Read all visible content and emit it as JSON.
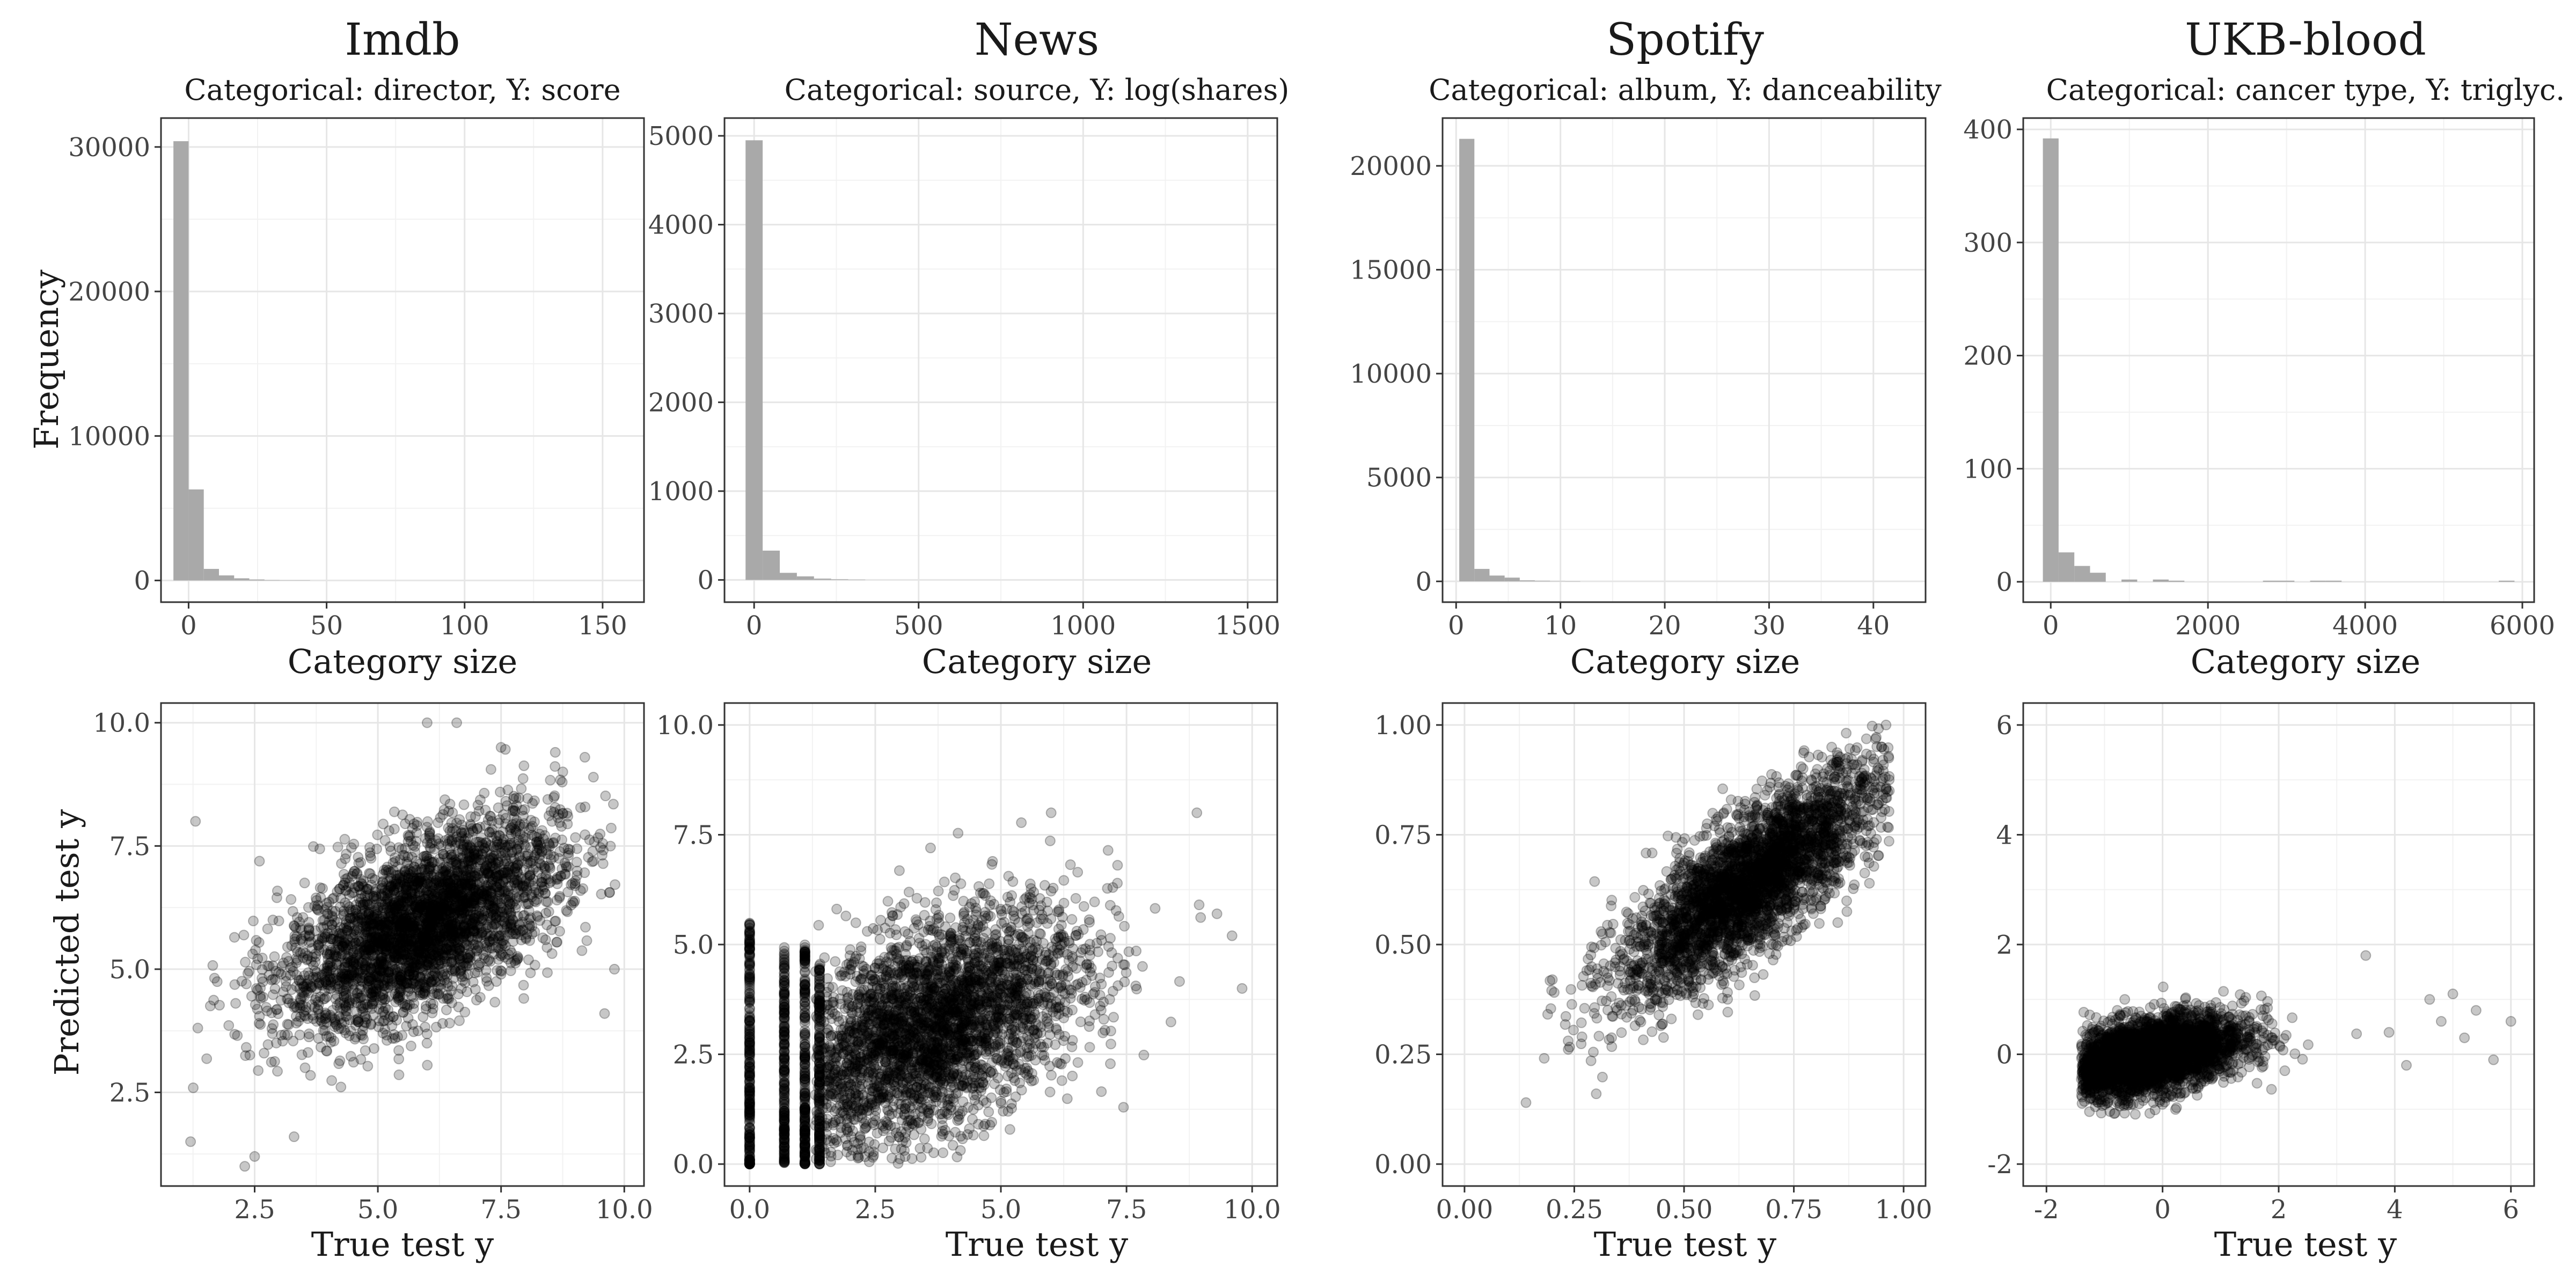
{
  "colors": {
    "bar": "#a9a9a9",
    "point": "#000000",
    "grid": "#e6e6e6",
    "border": "#333333"
  },
  "chart_data": [
    {
      "type": "bar",
      "title": "Imdb",
      "subtitle": "Categorical: director,  Y: score",
      "xlabel": "Category size",
      "ylabel": "Frequency",
      "xlim": [
        -10,
        165
      ],
      "ylim": [
        -1500,
        32000
      ],
      "xticks": [
        0,
        50,
        100,
        150
      ],
      "xtick_labels": [
        "0",
        "50",
        "100",
        "150"
      ],
      "yticks": [
        0,
        10000,
        20000,
        30000
      ],
      "ytick_labels": [
        "0",
        "10000",
        "20000",
        "30000"
      ],
      "bin_width": 5.5,
      "bins": [
        {
          "x0": -5.5,
          "count": 30400
        },
        {
          "x0": 0,
          "count": 6300
        },
        {
          "x0": 5.5,
          "count": 800
        },
        {
          "x0": 11,
          "count": 350
        },
        {
          "x0": 16.5,
          "count": 150
        },
        {
          "x0": 22,
          "count": 70
        },
        {
          "x0": 27.5,
          "count": 30
        },
        {
          "x0": 33,
          "count": 15
        },
        {
          "x0": 38.5,
          "count": 8
        }
      ]
    },
    {
      "type": "bar",
      "title": "News",
      "subtitle": "Categorical: source,  Y: log(shares)",
      "xlabel": "Category size",
      "ylabel": "",
      "xlim": [
        -90,
        1590
      ],
      "ylim": [
        -250,
        5200
      ],
      "xticks": [
        0,
        500,
        1000,
        1500
      ],
      "xtick_labels": [
        "0",
        "500",
        "1000",
        "1500"
      ],
      "yticks": [
        0,
        1000,
        2000,
        3000,
        4000,
        5000
      ],
      "ytick_labels": [
        "0",
        "1000",
        "2000",
        "3000",
        "4000",
        "5000"
      ],
      "bin_width": 52,
      "bins": [
        {
          "x0": -26,
          "count": 4950
        },
        {
          "x0": 26,
          "count": 330
        },
        {
          "x0": 78,
          "count": 80
        },
        {
          "x0": 130,
          "count": 40
        },
        {
          "x0": 182,
          "count": 15
        },
        {
          "x0": 234,
          "count": 8
        },
        {
          "x0": 286,
          "count": 4
        }
      ]
    },
    {
      "type": "bar",
      "title": "Spotify",
      "subtitle": "Categorical: album,  Y: danceability",
      "xlabel": "Category size",
      "ylabel": "",
      "xlim": [
        -1.3,
        45
      ],
      "ylim": [
        -1000,
        22300
      ],
      "xticks": [
        0,
        10,
        20,
        30,
        40
      ],
      "xtick_labels": [
        "0",
        "10",
        "20",
        "30",
        "40"
      ],
      "yticks": [
        0,
        5000,
        10000,
        15000,
        20000
      ],
      "ytick_labels": [
        "0",
        "5000",
        "10000",
        "15000",
        "20000"
      ],
      "bin_width": 1.45,
      "bins": [
        {
          "x0": 0.3,
          "count": 21300
        },
        {
          "x0": 1.75,
          "count": 600
        },
        {
          "x0": 3.2,
          "count": 280
        },
        {
          "x0": 4.65,
          "count": 180
        },
        {
          "x0": 6.1,
          "count": 50
        },
        {
          "x0": 7.55,
          "count": 30
        },
        {
          "x0": 9,
          "count": 15
        },
        {
          "x0": 10.45,
          "count": 8
        }
      ]
    },
    {
      "type": "bar",
      "title": "UKB-blood",
      "subtitle": "Categorical: cancer type,  Y: triglyc.",
      "xlabel": "Category size",
      "ylabel": "",
      "xlim": [
        -350,
        6150
      ],
      "ylim": [
        -18,
        410
      ],
      "xticks": [
        0,
        2000,
        4000,
        6000
      ],
      "xtick_labels": [
        "0",
        "2000",
        "4000",
        "6000"
      ],
      "yticks": [
        0,
        100,
        200,
        300,
        400
      ],
      "ytick_labels": [
        "0",
        "100",
        "200",
        "300",
        "400"
      ],
      "bin_width": 200,
      "bins": [
        {
          "x0": -100,
          "count": 392
        },
        {
          "x0": 100,
          "count": 26
        },
        {
          "x0": 300,
          "count": 14
        },
        {
          "x0": 500,
          "count": 8
        },
        {
          "x0": 900,
          "count": 2
        },
        {
          "x0": 1300,
          "count": 2
        },
        {
          "x0": 1500,
          "count": 1
        },
        {
          "x0": 2700,
          "count": 1
        },
        {
          "x0": 2900,
          "count": 1
        },
        {
          "x0": 3300,
          "count": 1
        },
        {
          "x0": 3500,
          "count": 1
        },
        {
          "x0": 5700,
          "count": 1
        }
      ]
    },
    {
      "type": "scatter",
      "xlabel": "True test y",
      "ylabel": "Predicted test y",
      "xlim": [
        0.6,
        10.4
      ],
      "ylim": [
        0.6,
        10.4
      ],
      "xticks": [
        2.5,
        5.0,
        7.5,
        10.0
      ],
      "xtick_labels": [
        "2.5",
        "5.0",
        "7.5",
        "10.0"
      ],
      "yticks": [
        2.5,
        5.0,
        7.5,
        10.0
      ],
      "ytick_labels": [
        "2.5",
        "5.0",
        "7.5",
        "10.0"
      ],
      "point_alpha": 0.22,
      "cloud": {
        "n": 3500,
        "mean_x": 5.9,
        "mean_y": 5.9,
        "sd_x": 1.4,
        "sd_y": 1.05,
        "corr": 0.58,
        "x_range": [
          1.0,
          9.9
        ],
        "y_range": [
          1.0,
          10.0
        ]
      },
      "points": [
        [
          6.0,
          10.0
        ],
        [
          6.6,
          10.0
        ],
        [
          7.5,
          9.5
        ],
        [
          2.3,
          1.0
        ],
        [
          2.5,
          1.2
        ],
        [
          1.2,
          1.5
        ],
        [
          1.3,
          8.0
        ],
        [
          9.8,
          5.0
        ],
        [
          9.6,
          4.1
        ],
        [
          3.3,
          1.6
        ],
        [
          8.6,
          9.4
        ],
        [
          9.2,
          9.3
        ]
      ]
    },
    {
      "type": "scatter",
      "xlabel": "True test y",
      "ylabel": "",
      "xlim": [
        -0.5,
        10.5
      ],
      "ylim": [
        -0.5,
        10.5
      ],
      "xticks": [
        0.0,
        2.5,
        5.0,
        7.5,
        10.0
      ],
      "xtick_labels": [
        "0.0",
        "2.5",
        "5.0",
        "7.5",
        "10.0"
      ],
      "yticks": [
        0.0,
        2.5,
        5.0,
        7.5,
        10.0
      ],
      "ytick_labels": [
        "0.0",
        "2.5",
        "5.0",
        "7.5",
        "10.0"
      ],
      "point_alpha": 0.22,
      "cloud": {
        "n": 3400,
        "mean_x": 3.6,
        "mean_y": 3.1,
        "sd_x": 1.5,
        "sd_y": 1.35,
        "corr": 0.5,
        "x_range": [
          1.3,
          9.9
        ],
        "y_range": [
          0.0,
          8.0
        ]
      },
      "strips": [
        {
          "x": 0.0,
          "y_range": [
            0.0,
            5.5
          ],
          "n": 250
        },
        {
          "x": 0.69,
          "y_range": [
            0.0,
            5.0
          ],
          "n": 220
        },
        {
          "x": 1.1,
          "y_range": [
            0.0,
            5.0
          ],
          "n": 220
        },
        {
          "x": 1.39,
          "y_range": [
            0.0,
            4.6
          ],
          "n": 180
        }
      ],
      "points": [
        [
          9.8,
          4.0
        ],
        [
          8.9,
          8.0
        ],
        [
          6.0,
          8.0
        ],
        [
          9.6,
          5.2
        ],
        [
          3.6,
          7.2
        ],
        [
          9.3,
          5.7
        ]
      ]
    },
    {
      "type": "scatter",
      "xlabel": "True test y",
      "ylabel": "",
      "xlim": [
        -0.05,
        1.05
      ],
      "ylim": [
        -0.05,
        1.05
      ],
      "xticks": [
        0.0,
        0.25,
        0.5,
        0.75,
        1.0
      ],
      "xtick_labels": [
        "0.00",
        "0.25",
        "0.50",
        "0.75",
        "1.00"
      ],
      "yticks": [
        0.0,
        0.25,
        0.5,
        0.75,
        1.0
      ],
      "ytick_labels": [
        "0.00",
        "0.25",
        "0.50",
        "0.75",
        "1.00"
      ],
      "point_alpha": 0.22,
      "cloud": {
        "n": 3400,
        "mean_x": 0.65,
        "mean_y": 0.64,
        "sd_x": 0.15,
        "sd_y": 0.13,
        "corr": 0.8,
        "x_range": [
          0.13,
          0.97
        ],
        "y_range": [
          0.14,
          1.0
        ]
      },
      "points": [
        [
          0.14,
          0.14
        ],
        [
          0.3,
          0.16
        ],
        [
          0.96,
          1.0
        ],
        [
          0.2,
          0.42
        ],
        [
          0.85,
          0.55
        ],
        [
          0.95,
          0.95
        ]
      ]
    },
    {
      "type": "scatter",
      "xlabel": "True test y",
      "ylabel": "",
      "xlim": [
        -2.4,
        6.4
      ],
      "ylim": [
        -2.4,
        6.4
      ],
      "xticks": [
        -2,
        0,
        2,
        4,
        6
      ],
      "xtick_labels": [
        "-2",
        "0",
        "2",
        "4",
        "6"
      ],
      "yticks": [
        -2,
        0,
        2,
        4,
        6
      ],
      "ytick_labels": [
        "-2",
        "0",
        "2",
        "4",
        "6"
      ],
      "point_alpha": 0.22,
      "cloud": {
        "n": 3600,
        "mean_x": -0.3,
        "mean_y": -0.05,
        "sd_x": 0.85,
        "sd_y": 0.38,
        "corr": 0.45,
        "x_range": [
          -1.4,
          6.0
        ],
        "y_range": [
          -1.1,
          1.8
        ]
      },
      "points": [
        [
          4.8,
          0.6
        ],
        [
          5.2,
          0.3
        ],
        [
          5.4,
          0.8
        ],
        [
          6.0,
          0.6
        ],
        [
          4.2,
          -0.2
        ],
        [
          3.5,
          1.8
        ],
        [
          4.6,
          1.0
        ],
        [
          5.0,
          1.1
        ],
        [
          3.9,
          0.4
        ],
        [
          5.7,
          -0.1
        ]
      ]
    }
  ]
}
